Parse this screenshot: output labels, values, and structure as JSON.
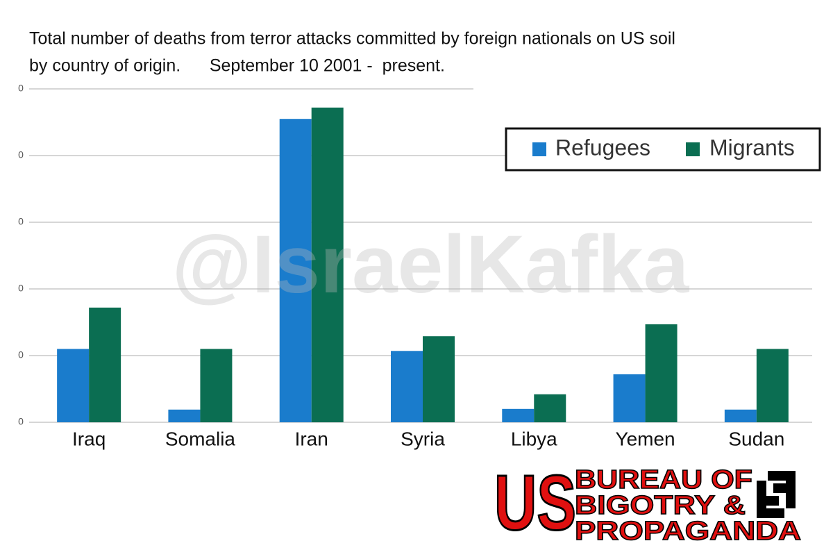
{
  "chart_data": {
    "type": "bar",
    "title": "Total number of deaths from terror attacks committed by foreign nationals on US soil",
    "subtitle": "by country of origin.      September 10 2001 -  present.",
    "categories": [
      "Iraq",
      "Somalia",
      "Iran",
      "Syria",
      "Libya",
      "Yemen",
      "Sudan"
    ],
    "series": [
      {
        "name": "Refugees",
        "color": "#1a7ccc",
        "values": [
          1.1,
          0.19,
          4.55,
          1.07,
          0.2,
          0.72,
          0.19
        ]
      },
      {
        "name": "Migrants",
        "color": "#0b6e52",
        "values": [
          1.72,
          1.1,
          4.72,
          1.29,
          0.42,
          1.47,
          1.1
        ]
      }
    ],
    "ylim": [
      0,
      5
    ],
    "yticks": [
      {
        "value": 0,
        "label": "0"
      },
      {
        "value": 1,
        "label": "0"
      },
      {
        "value": 2,
        "label": "0"
      },
      {
        "value": 3,
        "label": "0"
      },
      {
        "value": 4,
        "label": "0"
      },
      {
        "value": 5,
        "label": "0"
      }
    ],
    "grid": true,
    "legend": "top-right",
    "watermark": "@IsraelKafka",
    "logo": {
      "big": "US",
      "lines": [
        "BUREAU OF",
        "BIGOTRY &",
        "PROPAGANDA"
      ]
    }
  }
}
